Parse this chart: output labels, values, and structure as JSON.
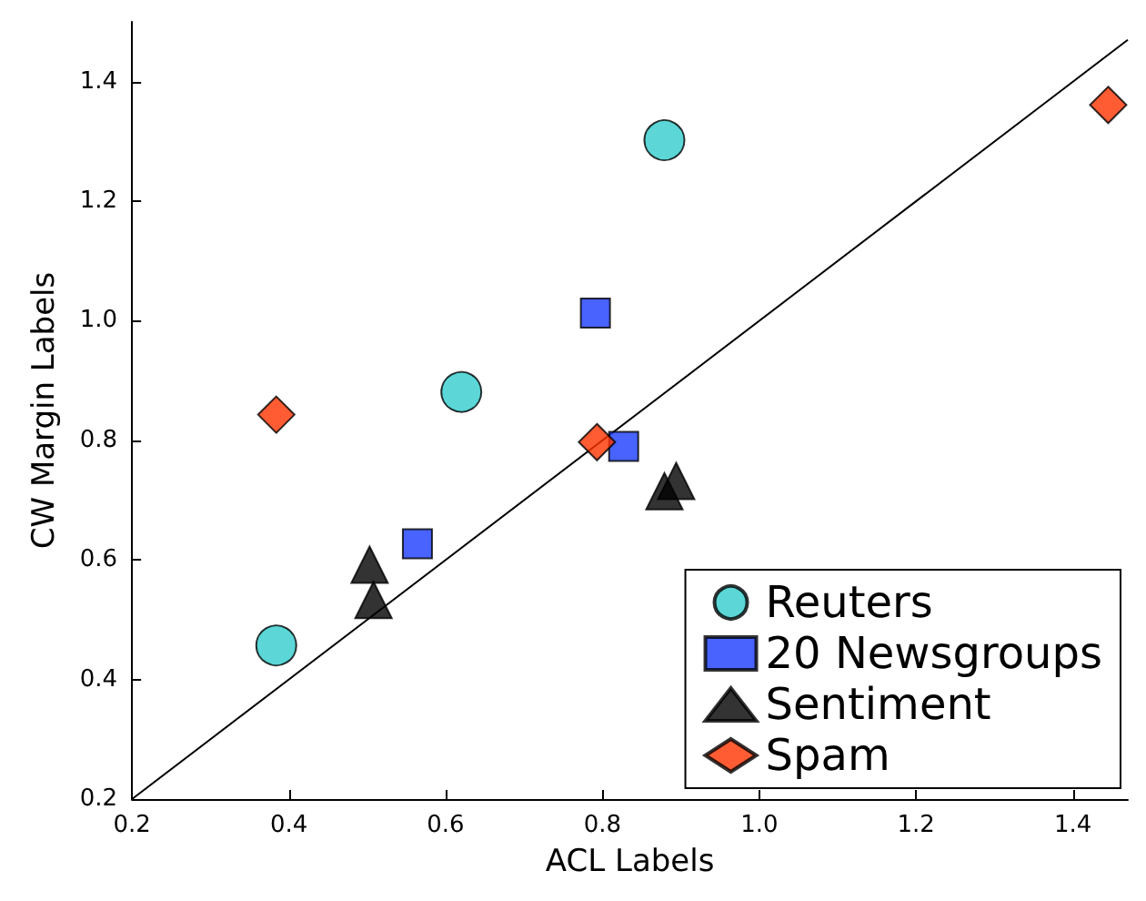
{
  "chart_data": {
    "type": "scatter",
    "xlabel": "ACL Labels",
    "ylabel": "CW Margin Labels",
    "xlim": [
      0.2,
      1.47
    ],
    "ylim": [
      0.2,
      1.5
    ],
    "xticks": [
      0.2,
      0.4,
      0.6,
      0.8,
      {
        "value": 1,
        "label": "1.0"
      },
      1.2,
      1.4
    ],
    "yticks": [
      0.2,
      0.4,
      0.6,
      0.8,
      {
        "value": 1,
        "label": "1.0"
      },
      1.2,
      1.4
    ],
    "grid": false,
    "legend": "bottom right",
    "series": [
      {
        "name": "Reuters",
        "color": "#33cccc",
        "marker": "circle",
        "x": [
          0.384,
          0.62,
          0.879
        ],
        "values": [
          0.457,
          0.881,
          1.302
        ]
      },
      {
        "name": "20 Newsgroups",
        "color": "#1a3cff",
        "marker": "square",
        "x": [
          0.564,
          0.791,
          0.827
        ],
        "values": [
          0.627,
          1.013,
          0.79
        ]
      },
      {
        "name": "Sentiment",
        "color": "#000000",
        "marker": "triangle",
        "x": [
          0.503,
          0.508,
          0.879,
          0.894
        ],
        "values": [
          0.592,
          0.533,
          0.715,
          0.732
        ]
      },
      {
        "name": "Spam",
        "color": "#ff3300",
        "marker": "diamond",
        "x": [
          0.384,
          0.793,
          1.445
        ],
        "values": [
          0.843,
          0.797,
          1.361
        ]
      },
      {
        "type": "line",
        "color": "#000000",
        "marker": "none",
        "x": [
          0.2,
          1.47
        ],
        "values": [
          0.2,
          1.47
        ]
      }
    ]
  }
}
